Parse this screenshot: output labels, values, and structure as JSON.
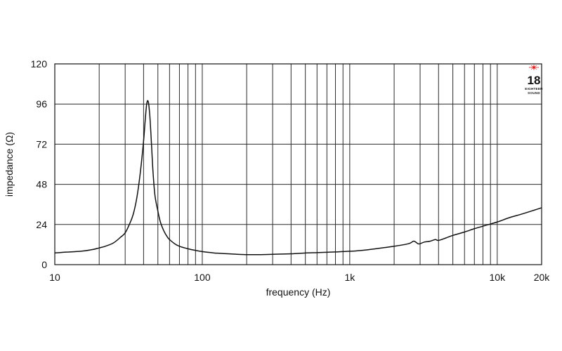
{
  "chart_data": {
    "type": "line",
    "title": "",
    "xlabel": "frequency (Hz)",
    "ylabel": "impedance (Ω)",
    "x_scale": "log",
    "xlim": [
      10,
      20000
    ],
    "ylim": [
      0,
      120
    ],
    "grid": true,
    "x_ticks": [
      {
        "value": 10,
        "label": "10"
      },
      {
        "value": 100,
        "label": "100"
      },
      {
        "value": 1000,
        "label": "1k"
      },
      {
        "value": 10000,
        "label": "10k"
      },
      {
        "value": 20000,
        "label": "20k"
      }
    ],
    "y_ticks": [
      {
        "value": 0,
        "label": "0"
      },
      {
        "value": 24,
        "label": "24"
      },
      {
        "value": 48,
        "label": "48"
      },
      {
        "value": 72,
        "label": "72"
      },
      {
        "value": 96,
        "label": "96"
      },
      {
        "value": 120,
        "label": "120"
      }
    ],
    "series": [
      {
        "x": [
          10,
          12,
          15,
          18,
          20,
          22,
          25,
          28,
          30,
          32,
          34,
          36,
          38,
          40,
          41,
          42,
          43,
          44,
          45,
          46,
          47,
          48,
          50,
          52,
          55,
          58,
          60,
          65,
          70,
          80,
          90,
          100,
          120,
          130,
          150,
          200,
          250,
          300,
          400,
          500,
          600,
          700,
          800,
          1000,
          1200,
          1500,
          2000,
          2500,
          2700,
          2800,
          2900,
          3000,
          3200,
          3500,
          3800,
          4000,
          4500,
          5000,
          6000,
          7000,
          8000,
          10000,
          12000,
          15000,
          20000
        ],
        "y": [
          7,
          7.5,
          8,
          9,
          10,
          11,
          13,
          16.5,
          19,
          24,
          30,
          40,
          55,
          74,
          86,
          96,
          97.5,
          90,
          76,
          60,
          48,
          40,
          32,
          25.5,
          20,
          16.5,
          15,
          12.5,
          11,
          9.5,
          8.5,
          7.8,
          7.0,
          6.8,
          6.5,
          6.0,
          6.0,
          6.2,
          6.5,
          7.0,
          7.2,
          7.4,
          7.6,
          8.0,
          8.5,
          9.5,
          11,
          12.5,
          14,
          13.5,
          12.5,
          12.5,
          13.5,
          14,
          15,
          14.5,
          16,
          17.5,
          19.5,
          21.5,
          23,
          25.5,
          28,
          30.5,
          34
        ]
      }
    ]
  }
}
